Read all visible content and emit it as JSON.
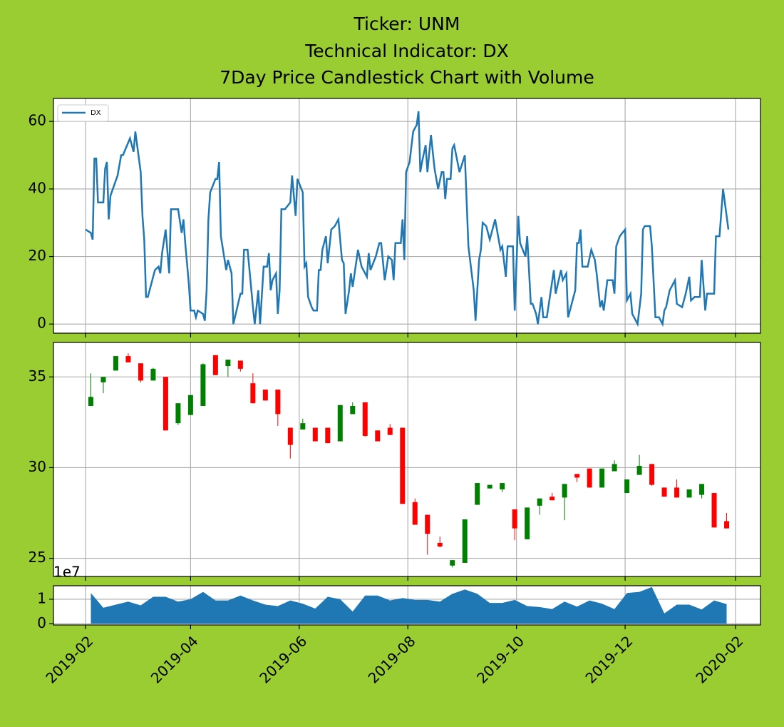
{
  "chart_data": [
    {
      "type": "line",
      "title": [
        "Ticker: UNM",
        "Technical Indicator: DX",
        "7Day Price Candlestick Chart with Volume"
      ],
      "x": [
        "2019-02-01",
        "2019-02-04",
        "2019-02-05",
        "2019-02-06",
        "2019-02-07",
        "2019-02-08",
        "2019-02-11",
        "2019-02-12",
        "2019-02-13",
        "2019-02-14",
        "2019-02-15",
        "2019-02-19",
        "2019-02-21",
        "2019-02-22",
        "2019-02-26",
        "2019-02-28",
        "2019-03-01",
        "2019-03-04",
        "2019-03-05",
        "2019-03-06",
        "2019-03-07",
        "2019-03-08",
        "2019-03-12",
        "2019-03-14",
        "2019-03-15",
        "2019-03-16",
        "2019-03-18",
        "2019-03-20",
        "2019-03-21",
        "2019-03-25",
        "2019-03-27",
        "2019-03-28",
        "2019-03-29",
        "2019-03-31",
        "2019-04-01",
        "2019-04-03",
        "2019-04-04",
        "2019-04-05",
        "2019-04-08",
        "2019-04-09",
        "2019-04-10",
        "2019-04-11",
        "2019-04-12",
        "2019-04-15",
        "2019-04-16",
        "2019-04-17",
        "2019-04-18",
        "2019-04-21",
        "2019-04-22",
        "2019-04-24",
        "2019-04-25",
        "2019-04-29",
        "2019-04-30",
        "2019-05-01",
        "2019-05-03",
        "2019-05-06",
        "2019-05-07",
        "2019-05-09",
        "2019-05-10",
        "2019-05-12",
        "2019-05-14",
        "2019-05-15",
        "2019-05-16",
        "2019-05-17",
        "2019-05-19",
        "2019-05-20",
        "2019-05-21",
        "2019-05-22",
        "2019-05-24",
        "2019-05-27",
        "2019-05-28",
        "2019-05-30",
        "2019-05-31",
        "2019-06-03",
        "2019-06-04",
        "2019-06-05",
        "2019-06-06",
        "2019-06-08",
        "2019-06-09",
        "2019-06-11",
        "2019-06-12",
        "2019-06-13",
        "2019-06-14",
        "2019-06-16",
        "2019-06-17",
        "2019-06-19",
        "2019-06-21",
        "2019-06-23",
        "2019-06-25",
        "2019-06-26",
        "2019-06-27",
        "2019-06-29",
        "2019-06-30",
        "2019-07-01",
        "2019-07-04",
        "2019-07-06",
        "2019-07-09",
        "2019-07-10",
        "2019-07-11",
        "2019-07-14",
        "2019-07-16",
        "2019-07-17",
        "2019-07-19",
        "2019-07-21",
        "2019-07-23",
        "2019-07-24",
        "2019-07-25",
        "2019-07-28",
        "2019-07-29",
        "2019-07-30",
        "2019-07-31",
        "2019-08-02",
        "2019-08-04",
        "2019-08-06",
        "2019-08-07",
        "2019-08-08",
        "2019-08-09",
        "2019-08-11",
        "2019-08-12",
        "2019-08-14",
        "2019-08-16",
        "2019-08-18",
        "2019-08-20",
        "2019-08-21",
        "2019-08-22",
        "2019-08-23",
        "2019-08-25",
        "2019-08-26",
        "2019-08-27",
        "2019-08-30",
        "2019-09-02",
        "2019-09-04",
        "2019-09-07",
        "2019-09-08",
        "2019-09-10",
        "2019-09-11",
        "2019-09-12",
        "2019-09-14",
        "2019-09-16",
        "2019-09-19",
        "2019-09-22",
        "2019-09-23",
        "2019-09-25",
        "2019-09-26",
        "2019-09-29",
        "2019-09-30",
        "2019-10-02",
        "2019-10-03",
        "2019-10-06",
        "2019-10-07",
        "2019-10-09",
        "2019-10-10",
        "2019-10-12",
        "2019-10-13",
        "2019-10-15",
        "2019-10-16",
        "2019-10-18",
        "2019-10-22",
        "2019-10-23",
        "2019-10-26",
        "2019-10-27",
        "2019-10-29",
        "2019-10-30",
        "2019-11-03",
        "2019-11-04",
        "2019-11-05",
        "2019-11-06",
        "2019-11-07",
        "2019-11-10",
        "2019-11-12",
        "2019-11-14",
        "2019-11-15",
        "2019-11-17",
        "2019-11-18",
        "2019-11-19",
        "2019-11-21",
        "2019-11-24",
        "2019-11-25",
        "2019-11-26",
        "2019-11-28",
        "2019-12-01",
        "2019-12-02",
        "2019-12-04",
        "2019-12-05",
        "2019-12-08",
        "2019-12-10",
        "2019-12-11",
        "2019-12-12",
        "2019-12-15",
        "2019-12-16",
        "2019-12-18",
        "2019-12-20",
        "2019-12-22",
        "2019-12-23",
        "2019-12-24",
        "2019-12-26",
        "2019-12-29",
        "2019-12-30",
        "2020-01-02",
        "2020-01-04",
        "2020-01-06",
        "2020-01-07",
        "2020-01-09",
        "2020-01-12",
        "2020-01-13",
        "2020-01-15",
        "2020-01-16",
        "2020-01-20",
        "2020-01-21",
        "2020-01-23",
        "2020-01-25",
        "2020-01-28"
      ],
      "series": [
        {
          "name": "DX",
          "color": "#1f77b4",
          "values": [
            28,
            27,
            25,
            49,
            49,
            36,
            36,
            46,
            48,
            31,
            38,
            44,
            50,
            50,
            55,
            51,
            57,
            45,
            32,
            25,
            8,
            8,
            16,
            17,
            15,
            21,
            28,
            15,
            34,
            34,
            27,
            31,
            24,
            12,
            4,
            4,
            2,
            4,
            3,
            1,
            10,
            31,
            39,
            43,
            43,
            48,
            26,
            16,
            19,
            15,
            0,
            9,
            9,
            22,
            22,
            5,
            0,
            10,
            0,
            17,
            17,
            21,
            10,
            13,
            15,
            3,
            10,
            34,
            34,
            36,
            44,
            32,
            43,
            39,
            17,
            18,
            8,
            5,
            4,
            4,
            16,
            16,
            22,
            26,
            18,
            28,
            29,
            31,
            19,
            18,
            3,
            10,
            15,
            11,
            22,
            17,
            14,
            21,
            16,
            20,
            24,
            24,
            13,
            20,
            19,
            13,
            24,
            24,
            31,
            19,
            45,
            48,
            57,
            59,
            63,
            45,
            48,
            53,
            45,
            56,
            46,
            40,
            45,
            45,
            37,
            43,
            43,
            52,
            53,
            45,
            50,
            23,
            10,
            1,
            19,
            22,
            30,
            29,
            25,
            31,
            22,
            23,
            14,
            23,
            23,
            4,
            32,
            24,
            20,
            26,
            6,
            6,
            3,
            0,
            8,
            2,
            2,
            16,
            9,
            16,
            13,
            15,
            2,
            10,
            24,
            24,
            28,
            17,
            17,
            22,
            19,
            15,
            5,
            7,
            4,
            13,
            13,
            9,
            23,
            26,
            28,
            7,
            9,
            3,
            0,
            9,
            28,
            29,
            29,
            23,
            2,
            2,
            0,
            4,
            5,
            10,
            13,
            6,
            5,
            9,
            14,
            7,
            8,
            8,
            19,
            4,
            9,
            9,
            26,
            26,
            40,
            28
          ]
        }
      ],
      "ylim": [
        -2.7,
        66.8
      ],
      "yticks": [
        0,
        20,
        40,
        60
      ],
      "grid": true,
      "legend": "upper left"
    },
    {
      "type": "candlestick",
      "x": [
        "2019-02-04",
        "2019-02-11",
        "2019-02-18",
        "2019-02-25",
        "2019-03-04",
        "2019-03-11",
        "2019-03-18",
        "2019-03-25",
        "2019-04-01",
        "2019-04-08",
        "2019-04-15",
        "2019-04-22",
        "2019-04-29",
        "2019-05-06",
        "2019-05-13",
        "2019-05-20",
        "2019-05-27",
        "2019-06-03",
        "2019-06-10",
        "2019-06-17",
        "2019-06-24",
        "2019-07-01",
        "2019-07-08",
        "2019-07-15",
        "2019-07-22",
        "2019-07-29",
        "2019-08-05",
        "2019-08-12",
        "2019-08-19",
        "2019-08-26",
        "2019-09-02",
        "2019-09-09",
        "2019-09-16",
        "2019-09-23",
        "2019-09-30",
        "2019-10-07",
        "2019-10-14",
        "2019-10-21",
        "2019-10-28",
        "2019-11-04",
        "2019-11-11",
        "2019-11-18",
        "2019-11-25",
        "2019-12-02",
        "2019-12-09",
        "2019-12-16",
        "2019-12-23",
        "2019-12-30",
        "2020-01-06",
        "2020-01-13",
        "2020-01-20",
        "2020-01-27"
      ],
      "open": [
        33.4,
        34.7,
        35.35,
        36.15,
        35.75,
        34.8,
        35.0,
        32.45,
        32.9,
        33.4,
        36.2,
        35.6,
        35.9,
        34.65,
        34.3,
        34.3,
        32.2,
        32.1,
        32.2,
        32.2,
        31.45,
        32.95,
        33.6,
        32.05,
        32.2,
        32.2,
        28.1,
        27.4,
        25.85,
        24.6,
        24.75,
        27.95,
        28.85,
        28.8,
        27.7,
        26.05,
        27.9,
        28.4,
        28.35,
        29.65,
        29.95,
        28.9,
        29.8,
        28.6,
        29.6,
        30.2,
        28.9,
        28.9,
        28.35,
        28.5,
        28.6,
        27.05
      ],
      "high": [
        35.2,
        35.0,
        36.15,
        36.3,
        35.75,
        35.5,
        35.0,
        33.55,
        34.0,
        35.75,
        36.2,
        35.95,
        35.9,
        35.2,
        34.3,
        34.3,
        32.2,
        32.7,
        32.2,
        32.2,
        33.45,
        33.6,
        33.6,
        32.05,
        32.4,
        32.2,
        28.3,
        27.4,
        26.2,
        24.9,
        27.15,
        29.15,
        29.05,
        29.15,
        27.7,
        27.8,
        28.3,
        28.6,
        29.1,
        29.65,
        29.95,
        29.95,
        30.4,
        29.35,
        30.7,
        30.2,
        28.9,
        29.35,
        28.8,
        29.1,
        28.6,
        27.5
      ],
      "low": [
        33.4,
        34.1,
        35.35,
        35.8,
        34.7,
        34.8,
        32.05,
        32.35,
        32.9,
        33.4,
        35.1,
        35.0,
        35.3,
        33.55,
        33.7,
        32.3,
        30.5,
        32.1,
        31.45,
        31.35,
        31.45,
        32.95,
        31.7,
        31.45,
        31.8,
        28.0,
        26.85,
        25.2,
        25.6,
        24.5,
        24.75,
        27.95,
        28.85,
        28.65,
        26.0,
        26.05,
        27.4,
        28.2,
        27.1,
        29.2,
        28.9,
        28.9,
        29.8,
        28.6,
        29.6,
        29.0,
        28.4,
        28.35,
        28.35,
        28.3,
        26.7,
        26.65
      ],
      "close": [
        33.9,
        35.0,
        36.15,
        35.8,
        34.8,
        35.45,
        32.05,
        33.55,
        34.0,
        35.7,
        35.1,
        35.95,
        35.45,
        33.55,
        33.7,
        32.95,
        31.25,
        32.45,
        31.45,
        31.35,
        33.45,
        33.4,
        31.75,
        31.45,
        31.8,
        28.0,
        26.85,
        26.35,
        25.65,
        24.9,
        27.15,
        29.15,
        29.05,
        29.15,
        26.65,
        27.8,
        28.3,
        28.2,
        29.1,
        29.45,
        28.9,
        29.95,
        30.2,
        29.35,
        30.1,
        29.05,
        28.4,
        28.35,
        28.8,
        29.1,
        26.7,
        26.65
      ],
      "up_color": "green",
      "down_color": "red",
      "ylim": [
        24.0,
        36.9
      ],
      "yticks": [
        25,
        30,
        35
      ],
      "grid": true
    },
    {
      "type": "area",
      "y_offset_label": "1e7",
      "color": "#1f77b4",
      "x": [
        "2019-02-04",
        "2019-02-11",
        "2019-02-18",
        "2019-02-25",
        "2019-03-04",
        "2019-03-11",
        "2019-03-18",
        "2019-03-25",
        "2019-04-01",
        "2019-04-08",
        "2019-04-15",
        "2019-04-22",
        "2019-04-29",
        "2019-05-06",
        "2019-05-13",
        "2019-05-20",
        "2019-05-27",
        "2019-06-03",
        "2019-06-10",
        "2019-06-17",
        "2019-06-24",
        "2019-07-01",
        "2019-07-08",
        "2019-07-15",
        "2019-07-22",
        "2019-07-29",
        "2019-08-05",
        "2019-08-12",
        "2019-08-19",
        "2019-08-26",
        "2019-09-02",
        "2019-09-09",
        "2019-09-16",
        "2019-09-23",
        "2019-09-30",
        "2019-10-07",
        "2019-10-14",
        "2019-10-21",
        "2019-10-28",
        "2019-11-04",
        "2019-11-11",
        "2019-11-18",
        "2019-11-25",
        "2019-12-02",
        "2019-12-09",
        "2019-12-16",
        "2019-12-23",
        "2019-12-30",
        "2020-01-06",
        "2020-01-13",
        "2020-01-20",
        "2020-01-27"
      ],
      "values": [
        1.25,
        0.65,
        0.78,
        0.9,
        0.75,
        1.1,
        1.1,
        0.9,
        1.0,
        1.3,
        0.95,
        0.95,
        1.15,
        0.95,
        0.78,
        0.72,
        0.95,
        0.82,
        0.62,
        1.1,
        1.0,
        0.5,
        1.15,
        1.15,
        0.95,
        1.05,
        0.97,
        0.97,
        0.9,
        1.22,
        1.4,
        1.22,
        0.85,
        0.85,
        0.97,
        0.72,
        0.68,
        0.6,
        0.9,
        0.7,
        0.95,
        0.82,
        0.6,
        1.25,
        1.3,
        1.5,
        0.42,
        0.78,
        0.78,
        0.58,
        0.95,
        0.8
      ],
      "ylim": [
        -0.05,
        1.55
      ],
      "yticks": [
        0,
        1
      ],
      "grid": true,
      "xlim": [
        "2019-01-14",
        "2020-02-15"
      ],
      "xticks": [
        {
          "value": "2019-02-01",
          "label": "2019-02"
        },
        {
          "value": "2019-04-01",
          "label": "2019-04"
        },
        {
          "value": "2019-06-01",
          "label": "2019-06"
        },
        {
          "value": "2019-08-01",
          "label": "2019-08"
        },
        {
          "value": "2019-10-01",
          "label": "2019-10"
        },
        {
          "value": "2019-12-01",
          "label": "2019-12"
        },
        {
          "value": "2020-02-01",
          "label": "2020-02"
        }
      ]
    }
  ]
}
